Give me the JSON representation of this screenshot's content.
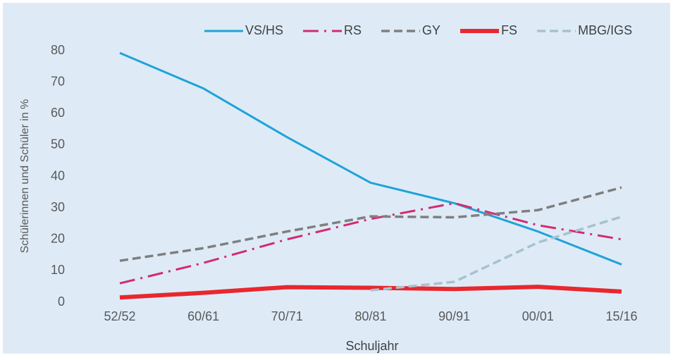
{
  "chart_data": {
    "type": "line",
    "categories": [
      "52/52",
      "60/61",
      "70/71",
      "80/81",
      "90/91",
      "00/01",
      "15/16"
    ],
    "x_label": "Schuljahr",
    "y_label": "Schülerinnen und Schüler in %",
    "ylim": [
      0,
      80
    ],
    "yticks": [
      0,
      10,
      20,
      30,
      40,
      50,
      60,
      70,
      80
    ],
    "grid": false,
    "legend": "top",
    "series": [
      {
        "name": "VS/HS",
        "color": "#1fa3d8",
        "style": "solid",
        "values": [
          79.3,
          68,
          52.5,
          38,
          31.5,
          22.5,
          12
        ]
      },
      {
        "name": "RS",
        "color": "#d42a72",
        "style": "dash-dot",
        "values": [
          6,
          12.5,
          20,
          26.5,
          31.5,
          24.5,
          20
        ]
      },
      {
        "name": "GY",
        "color": "#7f7f7f",
        "style": "dash",
        "values": [
          13.2,
          17.2,
          22.5,
          27.3,
          27,
          29.3,
          36.5
        ]
      },
      {
        "name": "FS",
        "color": "#e8282e",
        "style": "bold",
        "values": [
          1.5,
          3,
          4.8,
          4.6,
          4.2,
          4.9,
          3.4
        ]
      },
      {
        "name": "MBG/IGS",
        "color": "#a9c1cf",
        "style": "dash",
        "values": [
          null,
          null,
          null,
          3.8,
          6.5,
          19,
          27.2
        ]
      }
    ]
  }
}
